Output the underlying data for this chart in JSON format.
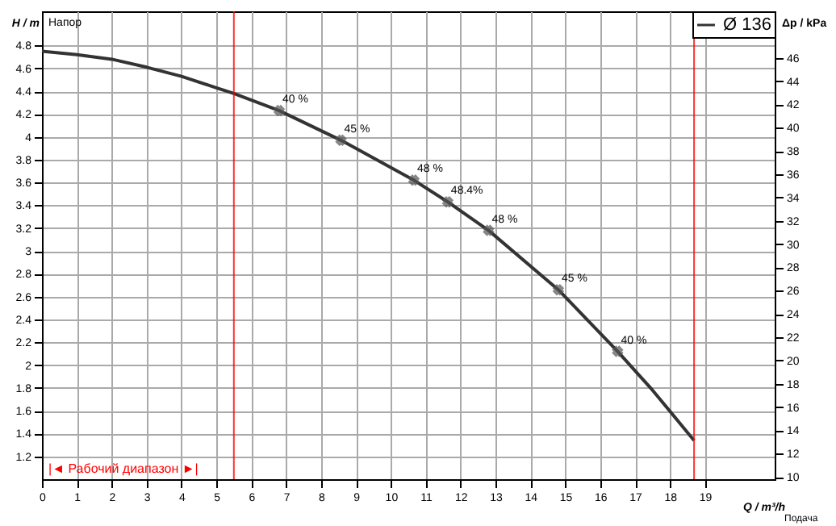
{
  "chart_data": {
    "type": "line",
    "xlabel": "Q / m³/h",
    "ylabel": "H / m",
    "y2label": "Δp / kPa",
    "series": [
      {
        "name": "Ø 136",
        "color": "#333333",
        "x": [
          0,
          1,
          2,
          3,
          4,
          5,
          5.5,
          6.8,
          8.57,
          10.66,
          11.63,
          12.8,
          14.8,
          16.5,
          17.5,
          18.69
        ],
        "values": [
          4.75,
          4.72,
          4.68,
          4.61,
          4.53,
          4.43,
          4.38,
          4.23,
          3.97,
          3.62,
          3.43,
          3.18,
          2.66,
          2.12,
          1.78,
          1.34
        ]
      }
    ],
    "xlim": [
      0,
      21
    ],
    "xticks": [
      0,
      1,
      2,
      3,
      4,
      5,
      6,
      7,
      8,
      9,
      10,
      11,
      12,
      13,
      14,
      15,
      16,
      17,
      18,
      19
    ],
    "ylim": [
      1,
      5.1
    ],
    "yticks": [
      1.2,
      1.4,
      1.6,
      1.8,
      2,
      2.2,
      2.4,
      2.6,
      2.8,
      3,
      3.2,
      3.4,
      3.6,
      3.8,
      4,
      4.2,
      4.4,
      4.6,
      4.8
    ],
    "y2lim": [
      9.8,
      50
    ],
    "y2ticks": [
      10,
      12,
      14,
      16,
      18,
      20,
      22,
      24,
      26,
      28,
      30,
      32,
      34,
      36,
      38,
      40,
      42,
      44,
      46
    ],
    "grid": true,
    "legend": "top right",
    "marker": "none",
    "line_style": "solid",
    "ref_lines": [
      {
        "axis": "x",
        "value": 5.5,
        "color": "#ff0000"
      },
      {
        "axis": "x",
        "value": 18.69,
        "color": "#ff0000"
      }
    ],
    "annotations": [
      {
        "text": "40 %",
        "x": 6.8,
        "y": 4.23
      },
      {
        "text": "45 %",
        "x": 8.57,
        "y": 3.97
      },
      {
        "text": "48 %",
        "x": 10.66,
        "y": 3.62
      },
      {
        "text": "48.4%",
        "x": 11.63,
        "y": 3.43
      },
      {
        "text": "48 %",
        "x": 12.8,
        "y": 3.18
      },
      {
        "text": "45 %",
        "x": 14.8,
        "y": 2.66
      },
      {
        "text": "40 %",
        "x": 16.5,
        "y": 2.12
      },
      "Напор",
      "|◄ Рабочий диапазон ►|",
      "Подача"
    ]
  }
}
